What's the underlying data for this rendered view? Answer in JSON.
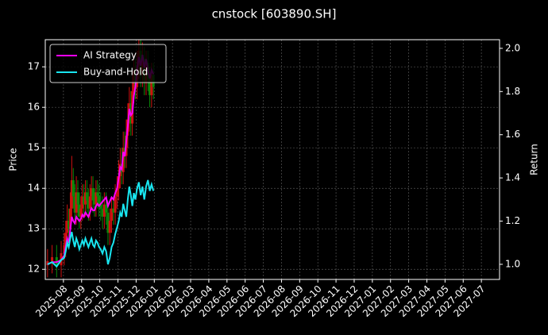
{
  "chart_data": {
    "type": "candlestick",
    "title": "cnstock [603890.SH]",
    "ylabel": "Price",
    "y2label": "Return",
    "x": [
      "2025-07",
      "2025-07",
      "2025-07",
      "2025-07",
      "2025-08",
      "2025-08",
      "2025-08",
      "2025-08",
      "2025-08",
      "2025-08",
      "2025-08",
      "2025-08",
      "2025-08",
      "2025-08",
      "2025-08",
      "2025-08",
      "2025-09",
      "2025-09",
      "2025-09",
      "2025-09",
      "2025-09",
      "2025-09",
      "2025-09",
      "2025-09",
      "2025-09",
      "2025-09",
      "2025-09",
      "2025-09",
      "2025-10",
      "2025-10",
      "2025-10",
      "2025-10",
      "2025-10",
      "2025-10",
      "2025-10",
      "2025-10",
      "2025-10",
      "2025-10",
      "2025-11",
      "2025-11",
      "2025-11",
      "2025-11",
      "2025-11",
      "2025-11",
      "2025-11",
      "2025-11",
      "2025-11",
      "2025-11",
      "2025-11",
      "2025-11",
      "2025-12",
      "2025-12",
      "2025-12",
      "2025-12",
      "2025-12",
      "2025-12",
      "2025-12",
      "2025-12",
      "2025-12",
      "2025-12"
    ],
    "candles": {
      "up_color": "#d01010",
      "down_color": "#0a8a0a",
      "open": [
        12.1,
        12.2,
        12.3,
        12.1,
        12.4,
        12.6,
        12.9,
        13.2,
        13.0,
        13.5,
        14.2,
        13.8,
        13.4,
        13.9,
        13.6,
        13.3,
        13.5,
        13.8,
        13.6,
        13.9,
        13.7,
        13.5,
        13.8,
        14.0,
        13.7,
        13.6,
        13.9,
        13.8,
        13.6,
        13.5,
        13.3,
        13.6,
        13.4,
        12.9,
        13.2,
        13.5,
        13.4,
        13.8,
        14.0,
        14.3,
        14.6,
        14.4,
        15.0,
        14.8,
        15.3,
        15.7,
        16.1,
        15.6,
        16.4,
        16.9,
        16.5,
        17.0,
        17.4,
        16.8,
        17.2,
        16.6,
        17.1,
        16.7,
        16.3,
        16.8
      ],
      "high": [
        12.5,
        12.6,
        12.6,
        12.7,
        12.9,
        13.2,
        13.6,
        13.5,
        13.9,
        14.8,
        14.5,
        14.1,
        14.3,
        14.2,
        13.9,
        13.8,
        14.1,
        14.1,
        14.2,
        14.2,
        14.0,
        14.1,
        14.3,
        14.3,
        14.0,
        14.2,
        14.2,
        14.1,
        13.9,
        13.8,
        13.9,
        13.9,
        13.7,
        13.5,
        13.8,
        13.8,
        14.1,
        14.3,
        14.7,
        15.0,
        15.0,
        15.4,
        15.4,
        15.7,
        16.1,
        16.5,
        16.4,
        16.8,
        17.3,
        17.2,
        17.4,
        17.8,
        17.7,
        17.6,
        17.5,
        17.4,
        17.4,
        17.0,
        17.1,
        17.1
      ],
      "low": [
        11.8,
        11.9,
        11.8,
        11.8,
        12.1,
        12.3,
        12.6,
        12.7,
        12.7,
        13.2,
        13.5,
        13.1,
        13.1,
        13.3,
        13.0,
        13.0,
        13.2,
        13.3,
        13.3,
        13.4,
        13.2,
        13.2,
        13.5,
        13.4,
        13.3,
        13.3,
        13.5,
        13.3,
        13.2,
        13.0,
        13.0,
        13.1,
        12.6,
        12.6,
        12.9,
        13.1,
        13.1,
        13.5,
        13.7,
        14.0,
        14.1,
        14.1,
        14.5,
        14.5,
        15.0,
        15.4,
        15.3,
        15.3,
        16.1,
        16.2,
        16.2,
        16.7,
        16.5,
        16.5,
        16.3,
        16.3,
        16.4,
        16.0,
        16.0,
        16.2
      ],
      "close": [
        12.2,
        12.3,
        12.1,
        12.4,
        12.6,
        12.9,
        13.2,
        13.0,
        13.5,
        14.2,
        13.8,
        13.4,
        13.9,
        13.6,
        13.3,
        13.5,
        13.8,
        13.6,
        13.9,
        13.7,
        13.5,
        13.8,
        14.0,
        13.7,
        13.6,
        13.9,
        13.8,
        13.6,
        13.5,
        13.3,
        13.6,
        13.4,
        12.9,
        13.2,
        13.5,
        13.4,
        13.8,
        14.0,
        14.3,
        14.6,
        14.4,
        15.0,
        14.8,
        15.3,
        15.7,
        16.1,
        15.6,
        16.4,
        16.9,
        16.5,
        17.0,
        17.4,
        16.8,
        17.2,
        16.6,
        17.1,
        16.7,
        16.3,
        16.8,
        16.5
      ]
    },
    "series": [
      {
        "name": "AI Strategy",
        "color": "#ff00ff",
        "axis": "y2",
        "values": [
          1.0,
          1.01,
          1.01,
          1.02,
          1.04,
          1.08,
          1.12,
          1.1,
          1.16,
          1.22,
          1.2,
          1.19,
          1.22,
          1.21,
          1.2,
          1.21,
          1.23,
          1.22,
          1.24,
          1.23,
          1.22,
          1.24,
          1.26,
          1.25,
          1.25,
          1.27,
          1.28,
          1.27,
          1.28,
          1.29,
          1.3,
          1.31,
          1.27,
          1.29,
          1.31,
          1.3,
          1.33,
          1.35,
          1.4,
          1.45,
          1.44,
          1.52,
          1.5,
          1.57,
          1.64,
          1.72,
          1.69,
          1.7,
          1.78,
          1.82,
          1.9,
          1.96,
          1.92,
          1.97,
          1.91,
          1.95,
          1.9,
          1.86,
          1.9,
          1.88
        ]
      },
      {
        "name": "Buy-and-Hold",
        "color": "#19e6f0",
        "axis": "y2",
        "values": [
          1.0,
          1.01,
          0.99,
          1.02,
          1.03,
          1.06,
          1.1,
          1.08,
          1.12,
          1.15,
          1.11,
          1.08,
          1.12,
          1.1,
          1.07,
          1.09,
          1.11,
          1.09,
          1.12,
          1.1,
          1.08,
          1.1,
          1.12,
          1.09,
          1.08,
          1.11,
          1.1,
          1.08,
          1.07,
          1.05,
          1.08,
          1.06,
          1.0,
          1.03,
          1.08,
          1.1,
          1.14,
          1.17,
          1.2,
          1.24,
          1.22,
          1.28,
          1.25,
          1.22,
          1.3,
          1.36,
          1.32,
          1.27,
          1.33,
          1.3,
          1.35,
          1.38,
          1.32,
          1.36,
          1.3,
          1.36,
          1.39,
          1.34,
          1.37,
          1.34
        ]
      }
    ],
    "xlim": [
      "2025-07",
      "2027-08"
    ],
    "xticks": [
      "2025-08",
      "2025-09",
      "2025-10",
      "2025-11",
      "2025-12",
      "2026-01",
      "2026-02",
      "2026-03",
      "2026-04",
      "2026-05",
      "2026-06",
      "2026-07",
      "2026-08",
      "2026-09",
      "2026-10",
      "2026-11",
      "2026-12",
      "2027-01",
      "2027-02",
      "2027-03",
      "2027-04",
      "2027-05",
      "2027-06",
      "2027-07"
    ],
    "ylim": [
      11.75,
      17.67
    ],
    "yticks": [
      12,
      13,
      14,
      15,
      16,
      17
    ],
    "y2lim": [
      0.93,
      2.04
    ],
    "y2ticks": [
      {
        "value": 1,
        "label": "1.0"
      },
      1.2,
      1.4,
      1.6,
      1.8,
      {
        "value": 2,
        "label": "2.0"
      }
    ],
    "grid": true,
    "legend": "upper left"
  }
}
